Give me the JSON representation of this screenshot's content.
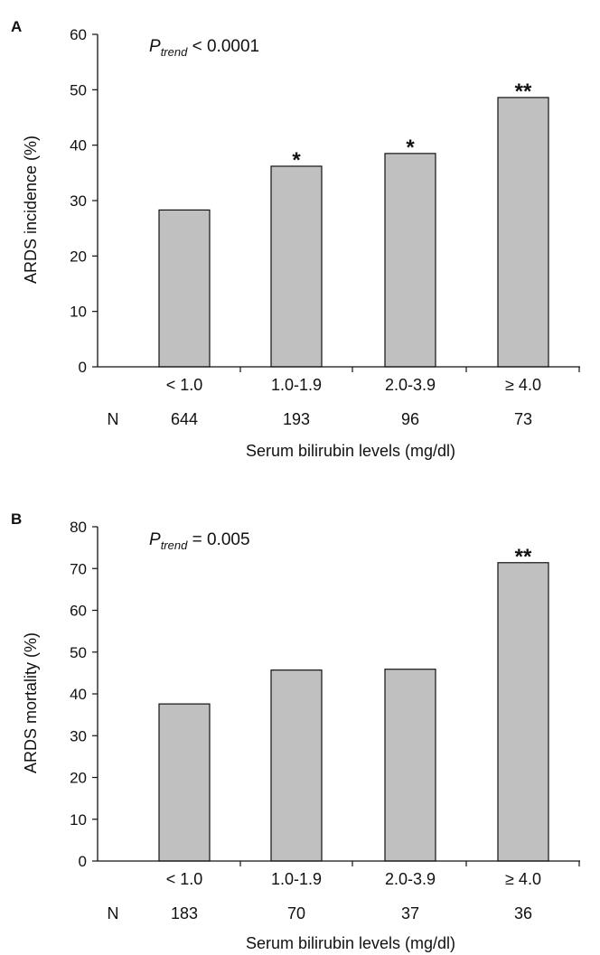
{
  "chart_data": [
    {
      "type": "bar",
      "panel": "A",
      "ylabel": "ARDS incidence (%)",
      "xlabel": "Serum bilirubin levels (mg/dl)",
      "categories": [
        "< 1.0",
        "1.0-1.9",
        "2.0-3.9",
        "≥ 4.0"
      ],
      "values": [
        28.3,
        36.2,
        38.5,
        48.6
      ],
      "significance": [
        "",
        "*",
        "*",
        "**"
      ],
      "n_label": "N",
      "n_values": [
        "644",
        "193",
        "96",
        "73"
      ],
      "ylim": [
        0,
        60
      ],
      "yticks": [
        0,
        10,
        20,
        30,
        40,
        50,
        60
      ],
      "ptrend": {
        "p": "P",
        "sub": "trend",
        "value": " < 0.0001"
      },
      "bar_color": "#c0c0c0"
    },
    {
      "type": "bar",
      "panel": "B",
      "ylabel": "ARDS mortality (%)",
      "xlabel": "Serum bilirubin levels (mg/dl)",
      "categories": [
        "< 1.0",
        "1.0-1.9",
        "2.0-3.9",
        "≥ 4.0"
      ],
      "values": [
        37.6,
        45.7,
        45.9,
        71.4
      ],
      "significance": [
        "",
        "",
        "",
        "**"
      ],
      "n_label": "N",
      "n_values": [
        "183",
        "70",
        "37",
        "36"
      ],
      "ylim": [
        0,
        80
      ],
      "yticks": [
        0,
        10,
        20,
        30,
        40,
        50,
        60,
        70,
        80
      ],
      "ptrend": {
        "p": "P",
        "sub": "trend",
        "value": " = 0.005"
      },
      "bar_color": "#c0c0c0"
    }
  ]
}
